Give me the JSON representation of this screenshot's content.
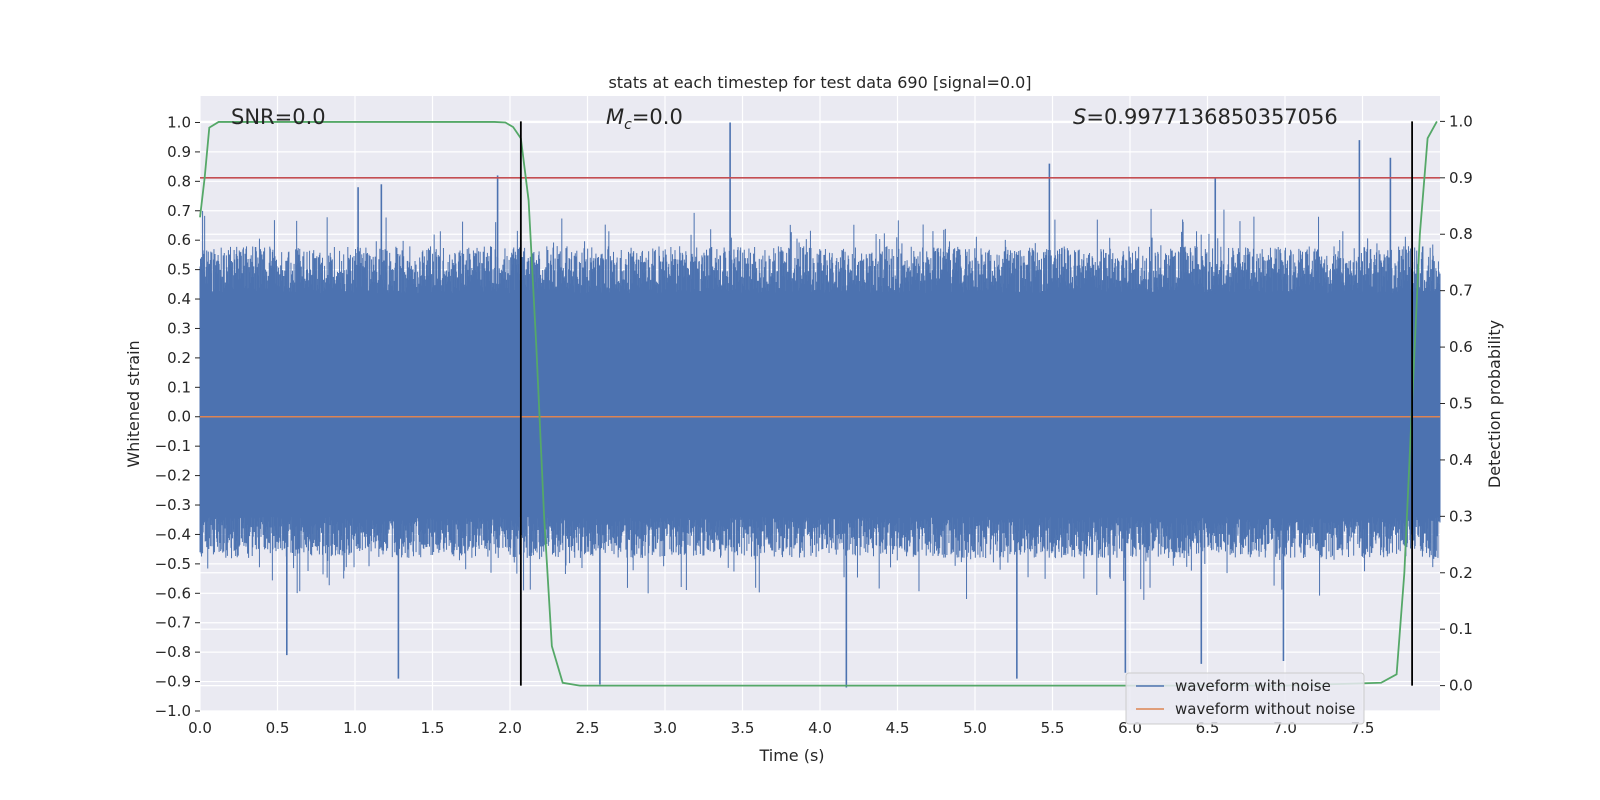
{
  "chart_data": {
    "type": "line",
    "title": "stats at each timestep for test data 690 [signal=0.0]",
    "xlabel": "Time (s)",
    "ylabel": "Whitened strain",
    "y2label": "Detection probability",
    "xlim": [
      0.0,
      8.0
    ],
    "ylim": [
      -1.0,
      1.09
    ],
    "y2lim": [
      -0.045,
      1.045
    ],
    "xticks": [
      "0.0",
      "0.5",
      "1.0",
      "1.5",
      "2.0",
      "2.5",
      "3.0",
      "3.5",
      "4.0",
      "4.5",
      "5.0",
      "5.5",
      "6.0",
      "6.5",
      "7.0",
      "7.5"
    ],
    "yticks": [
      "−1.0",
      "−0.9",
      "−0.8",
      "−0.7",
      "−0.6",
      "−0.5",
      "−0.4",
      "−0.3",
      "−0.2",
      "−0.1",
      "0.0",
      "0.1",
      "0.2",
      "0.3",
      "0.4",
      "0.5",
      "0.6",
      "0.7",
      "0.8",
      "0.9",
      "1.0"
    ],
    "y2ticks": [
      "0.0",
      "0.1",
      "0.2",
      "0.3",
      "0.4",
      "0.5",
      "0.6",
      "0.7",
      "0.8",
      "0.9",
      "1.0"
    ],
    "grid": true,
    "legend_position": "lower-right",
    "annotations": {
      "snr": "SNR=0.0",
      "mc_symbol": "M",
      "mc_sub": "c",
      "mc_value": "=0.0",
      "s_symbol": "S",
      "s_value": "=0.9977136850357056"
    },
    "threshold_y2": 0.9,
    "vlines_x": [
      2.07,
      7.82
    ],
    "series": [
      {
        "name": "waveform with noise",
        "color": "#4c72b0",
        "noise_band": {
          "core_low": -0.34,
          "core_high": 0.42,
          "typical_low": -0.48,
          "typical_high": 0.58
        },
        "peaks": [
          {
            "x": 1.02,
            "y": 0.78
          },
          {
            "x": 1.17,
            "y": 0.79
          },
          {
            "x": 1.92,
            "y": 0.82
          },
          {
            "x": 3.42,
            "y": 1.0
          },
          {
            "x": 5.48,
            "y": 0.86
          },
          {
            "x": 6.55,
            "y": 0.81
          },
          {
            "x": 7.48,
            "y": 0.94
          },
          {
            "x": 7.68,
            "y": 0.88
          }
        ],
        "troughs": [
          {
            "x": 0.56,
            "y": -0.81
          },
          {
            "x": 1.28,
            "y": -0.89
          },
          {
            "x": 2.58,
            "y": -0.91
          },
          {
            "x": 4.17,
            "y": -0.92
          },
          {
            "x": 5.27,
            "y": -0.89
          },
          {
            "x": 5.97,
            "y": -0.87
          },
          {
            "x": 6.46,
            "y": -0.84
          },
          {
            "x": 6.99,
            "y": -0.83
          }
        ]
      },
      {
        "name": "waveform without noise",
        "color": "#dd8452",
        "value": 0.0
      },
      {
        "name": "detection probability",
        "color": "#55a868",
        "axis": "right",
        "x": [
          0.0,
          0.03,
          0.06,
          0.12,
          0.5,
          1.0,
          1.5,
          1.9,
          1.97,
          2.02,
          2.07,
          2.12,
          2.17,
          2.22,
          2.27,
          2.34,
          2.45,
          3.0,
          7.0,
          7.62,
          7.72,
          7.77,
          7.82,
          7.87,
          7.92,
          7.98
        ],
        "y": [
          0.83,
          0.9,
          0.989,
          0.999,
          0.999,
          0.999,
          0.999,
          0.999,
          0.998,
          0.99,
          0.97,
          0.86,
          0.6,
          0.3,
          0.07,
          0.005,
          0.0,
          0.0,
          0.0,
          0.005,
          0.02,
          0.2,
          0.5,
          0.8,
          0.97,
          1.0
        ]
      }
    ],
    "colors": {
      "plot_bg": "#eaeaf2",
      "grid": "#ffffff",
      "threshold": "#c44e52",
      "vline": "#000000",
      "text": "#262626"
    }
  }
}
